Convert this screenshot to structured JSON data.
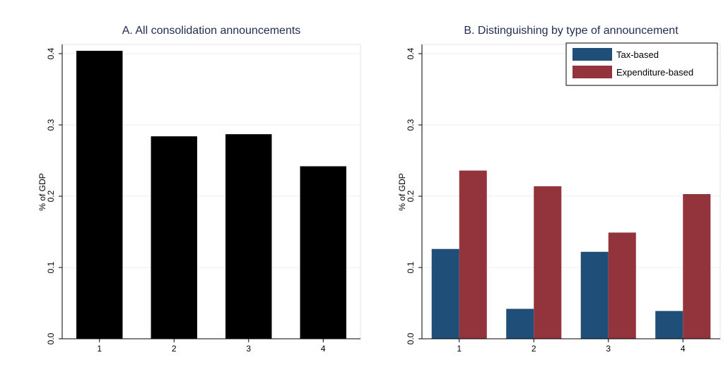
{
  "chart_data": [
    {
      "type": "bar",
      "title": "A. All consolidation announcements",
      "xlabel": "",
      "ylabel": "% of GDP",
      "ylim": [
        0,
        0.4
      ],
      "yticks": [
        "0.0",
        "0.1",
        "0.2",
        "0.3",
        "0.4"
      ],
      "grid": true,
      "categories": [
        "1",
        "2",
        "3",
        "4"
      ],
      "series": [
        {
          "values": [
            0.404,
            0.284,
            0.287,
            0.242
          ],
          "color": "#000000"
        }
      ]
    },
    {
      "type": "bar",
      "title": "B. Distinguishing by type of announcement",
      "xlabel": "",
      "ylabel": "% of GDP",
      "ylim": [
        0,
        0.4
      ],
      "yticks": [
        "0.0",
        "0.1",
        "0.2",
        "0.3",
        "0.4"
      ],
      "grid": true,
      "legend_position": "top-right",
      "categories": [
        "1",
        "2",
        "3",
        "4"
      ],
      "series": [
        {
          "name": "Tax-based",
          "values": [
            0.126,
            0.042,
            0.122,
            0.039
          ],
          "color": "#1f4e79"
        },
        {
          "name": "Expenditure-based",
          "values": [
            0.236,
            0.214,
            0.149,
            0.203
          ],
          "color": "#93343c"
        }
      ]
    }
  ]
}
